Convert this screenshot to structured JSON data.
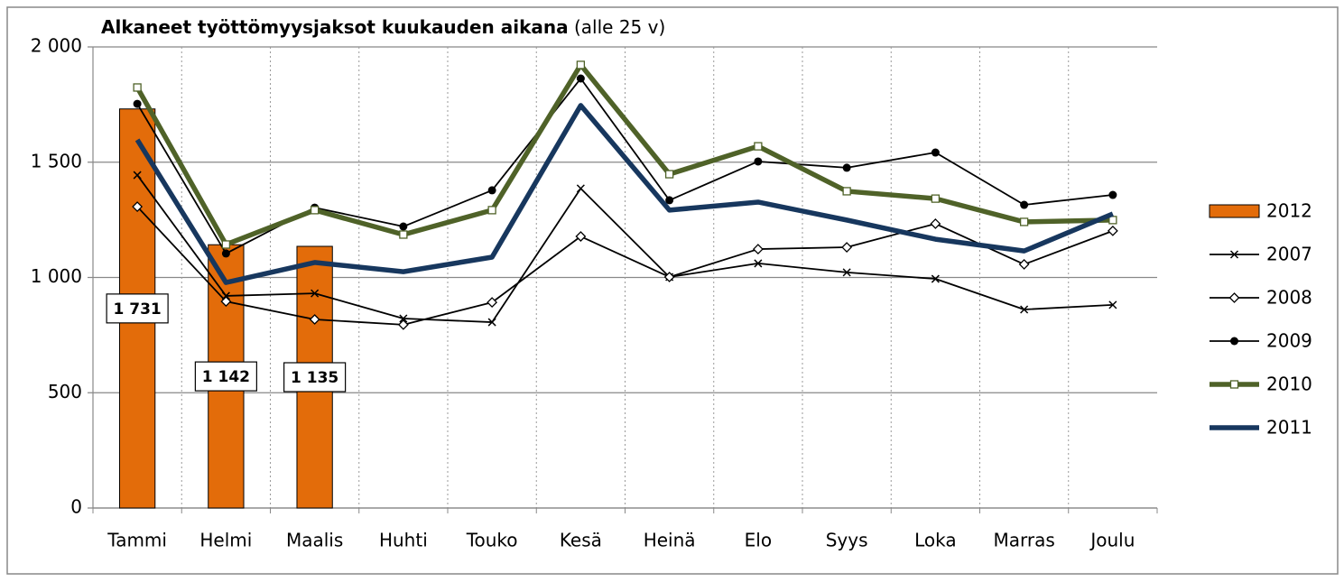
{
  "chart_data": {
    "type": "combo",
    "title": "Alkaneet työttömyysjaksot kuukauden aikana",
    "subtitle": "(alle 25 v)",
    "categories": [
      "Tammi",
      "Helmi",
      "Maalis",
      "Huhti",
      "Touko",
      "Kesä",
      "Heinä",
      "Elo",
      "Syys",
      "Loka",
      "Marras",
      "Joulu"
    ],
    "ylim": [
      0,
      2000
    ],
    "yticks": [
      0,
      500,
      {
        "value": 1000,
        "label": "1 000"
      },
      {
        "value": 1500,
        "label": "1 500"
      },
      {
        "value": 2000,
        "label": "2 000"
      }
    ],
    "grid": true,
    "legend": "right",
    "series": [
      {
        "name": "2012",
        "type": "bar",
        "color": "#e36c0a",
        "values": [
          1731,
          1142,
          1135,
          null,
          null,
          null,
          null,
          null,
          null,
          null,
          null,
          null
        ],
        "value_labels": [
          "1 731",
          "1 142",
          "1 135",
          null,
          null,
          null,
          null,
          null,
          null,
          null,
          null,
          null
        ]
      },
      {
        "name": "2007",
        "type": "line",
        "color": "#000000",
        "marker": "x",
        "thick": false,
        "values": [
          1444,
          920,
          931,
          822,
          806,
          1386,
          1002,
          1061,
          1022,
          994,
          861,
          881
        ]
      },
      {
        "name": "2008",
        "type": "line",
        "color": "#000000",
        "marker": "diamond",
        "thick": false,
        "values": [
          1307,
          896,
          818,
          795,
          892,
          1178,
          1002,
          1123,
          1131,
          1233,
          1057,
          1202
        ]
      },
      {
        "name": "2009",
        "type": "line",
        "color": "#000000",
        "marker": "circle",
        "thick": false,
        "values": [
          1753,
          1104,
          1303,
          1221,
          1378,
          1863,
          1335,
          1503,
          1476,
          1542,
          1315,
          1358
        ]
      },
      {
        "name": "2010",
        "type": "line",
        "color": "#4f6228",
        "marker": "square",
        "thick": true,
        "values": [
          1824,
          1143,
          1292,
          1186,
          1292,
          1922,
          1448,
          1569,
          1374,
          1342,
          1241,
          1249
        ]
      },
      {
        "name": "2011",
        "type": "line",
        "color": "#17375e",
        "marker": null,
        "thick": true,
        "values": [
          1597,
          978,
          1065,
          1025,
          1088,
          1746,
          1292,
          1327,
          1249,
          1166,
          1115,
          1276
        ]
      }
    ]
  }
}
